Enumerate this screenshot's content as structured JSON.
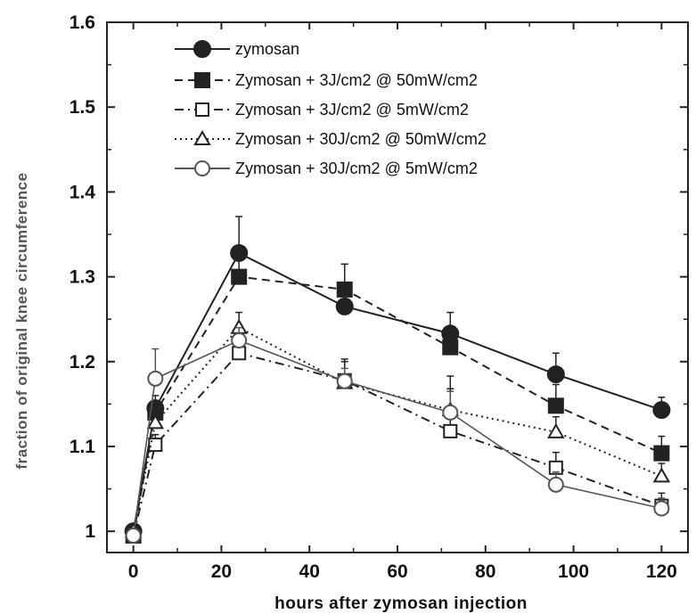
{
  "chart_data": {
    "type": "line",
    "title": "",
    "xlabel": "hours after zymosan injection",
    "ylabel": "fraction of original knee circumference",
    "xlim": [
      -6,
      126
    ],
    "ylim": [
      0.975,
      1.6
    ],
    "xticks": [
      0,
      20,
      40,
      60,
      80,
      100,
      120
    ],
    "yticks": [
      1,
      1.1,
      1.2,
      1.3,
      1.4,
      1.5,
      1.6
    ],
    "ytick_labels": [
      "1",
      "1.1",
      "1.2",
      "1.3",
      "1.4",
      "1.5",
      "1.6"
    ],
    "grid": false,
    "legend_position": "top-left",
    "x": [
      0,
      5,
      24,
      48,
      72,
      96,
      120
    ],
    "series": [
      {
        "name": "zymosan",
        "values": [
          1.0,
          1.145,
          1.328,
          1.265,
          1.233,
          1.185,
          1.143
        ],
        "errors": [
          0,
          0.015,
          0.043,
          0.015,
          0.025,
          0.025,
          0.015
        ],
        "marker": "filled-circle",
        "line": "solid",
        "color": "#222222"
      },
      {
        "name": "Zymosan + 3J/cm2 @ 50mW/cm2",
        "values": [
          0.995,
          1.14,
          1.3,
          1.285,
          1.217,
          1.148,
          1.092
        ],
        "errors": [
          0,
          0.012,
          0.03,
          0.03,
          0.02,
          0.025,
          0.02
        ],
        "marker": "filled-square",
        "line": "dashed",
        "color": "#222222"
      },
      {
        "name": "Zymosan + 3J/cm2 @ 5mW/cm2",
        "values": [
          0.995,
          1.102,
          1.21,
          1.178,
          1.118,
          1.075,
          1.03
        ],
        "errors": [
          0,
          0.012,
          0.02,
          0.025,
          0.065,
          0.018,
          0.015
        ],
        "marker": "open-square",
        "line": "dash-dot",
        "color": "#222222"
      },
      {
        "name": "Zymosan + 30J/cm2 @ 50mW/cm2",
        "values": [
          1.0,
          1.128,
          1.24,
          1.175,
          1.143,
          1.117,
          1.065
        ],
        "errors": [
          0,
          0.012,
          0.018,
          0.025,
          0.025,
          0.018,
          0.015
        ],
        "marker": "open-triangle",
        "line": "dotted",
        "color": "#222222"
      },
      {
        "name": "Zymosan + 30J/cm2 @ 5mW/cm2",
        "values": [
          0.995,
          1.18,
          1.225,
          1.177,
          1.14,
          1.055,
          1.027
        ],
        "errors": [
          0,
          0.035,
          0.015,
          0.015,
          0.025,
          0.015,
          0.012
        ],
        "marker": "open-circle",
        "line": "solid-gray",
        "color": "#555555"
      }
    ]
  }
}
